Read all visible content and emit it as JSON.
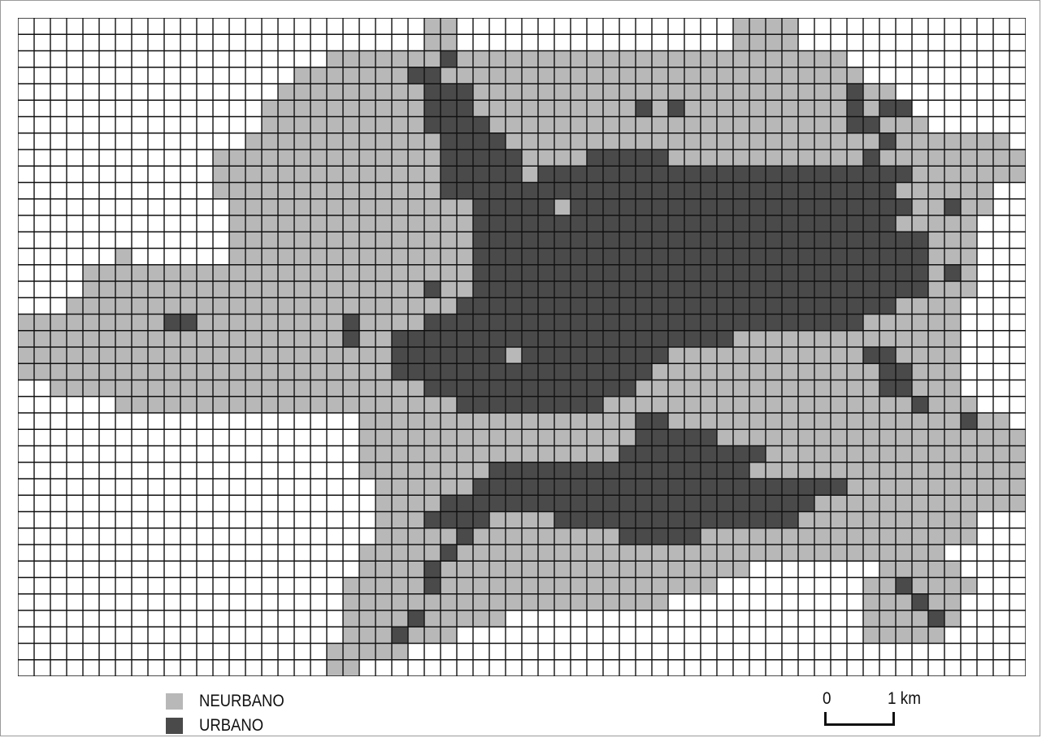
{
  "map": {
    "cols": 62,
    "rows": 40,
    "colors": {
      "neurbano": "#b8b8b8",
      "urbano": "#4a4a4a",
      "empty": "#ffffff",
      "gridline": "#111111"
    },
    "cells": [
      "                         NN                 NNNN               ",
      "                         NN                 NNNN               ",
      "                   NNNNNNNUNNNNNNNNNNNNNNNNNNNNNNNN            ",
      "                 NNNNNNNUUNNNNNNNNNNNNNNNNNNNNNNNNNN           ",
      "                NNNNNNNNNUUUNNNNNNNNNNNNNNNNNNNNNNNUNN         ",
      "               NNNNNNNNNNUUUNNNNNNNNNNUNUNNNNNNNNNNUNUU        ",
      "               NNNNNNNNNNUUUUNNNNNNNNNNNNNNNNNNNNNNUUNNN       ",
      "              NNNNNNNNNNNNUUUUNNNNNNNNNNNNNNNNNNNNNNNUNNNNNNN  ",
      "            NNNNNNNNNNNNNNUUUUUNNNNUUUUUNNNNNNNNNNNNUNNNNNNNNN ",
      "            NNNNNNNNNNNNNNUUUUUNUUUUUUUUUUUUUUUUUUUUUUUNNNNNNN ",
      "            NNNNNNNNNNNNNNUUUUUUUUUUUUUUUUUUUUUUUUUUUUNNNNNN   ",
      "             NNNNNNNNNNNNNNNUUUUUNUUUUUUUUUUUUUUUUUUUUUNNUNN   ",
      "             NNNNNNNNNNNNNNNUUUUUUUUUUUUUUUUUUUUUUUUUUNNNNN    ",
      "             NNNNNNNNNNNNNNNUUUUUUUUUUUUUUUUUUUUUUUUUUUUNNN    ",
      "      N      NNNNNNNNNNNNNNNUUUUUUUUUUUUUUUUUUUUUUUUUUUUNNN    ",
      "    NNNNNNNNNNNNNNNNNNNNNNNNUUUUUUUUUUUUUUUUUUUUUUUUUUUUNUN    ",
      "    NNNNNNNNNNNNNNNNNNNNNUNNUUUUUUUUUUUUUUUUUUUUUUUUUUUUNNN    ",
      "   NNNNNNNNNNNNNNNNNNNNNNNNUUUUUUUUUUUUUUUUUUUUUUUUUUUNNNN     ",
      "NNNNNNNNNUUNNNNNNNNNUNNNNUUUUUUUUUUUUUUUUUUUUUUUUUUUNNNNNN     ",
      "NNNNNNNNNNNNNNNNNNNNUNNUUUUUUUUUUUUUUUUUUUUUNNNNNNNNNNNNNN     ",
      "NNNNNNNNNNNNNNNNNNNNNNNUUUUUUUNUUUUUUUUUNNNNNNNNNNNNUUNNNN     ",
      "NNNNNNNNNNNNNNNNNNNNNNNUUUUUUUUUUUUUUUUNNNNNNNNNNNNNNUUNNN     ",
      "  NNNNNNNNNNNNNNNNNNNNNNNUUUUUUUUUUUUUNNNNNNNNNNNNNNNUUNNN     ",
      "      NNNNNNNNNNNNNNNNNNNNNUUUUUUUUUNNNNNNNNNNNNNNNNNNNUNNN    ",
      "                     NNNNNNNNNNNNNNNNNUUNNNNNNNNNNNNNNNNNNUNN   ",
      "                     NNNNNNNNNNNNNNNNNUUUUUNNNNNNNNNNNNNNNNNNN  ",
      "                     NNNNNNNNNNNNNNNNUUUUUUUUUNNNNNNNNNNNNNNNNN ",
      "                     NNNNNNNNUUUUUUUUUUUUUUUUNNNNNNNNNNNNNNNNNN ",
      "                      NNNNNNUUUUUUUUUUUUUUUUUUUUUUUNNNNNNNNNNN  ",
      "                      NNNNUUUUUUUUUUUUUUUUUUUUUUUNNNNNNNNNNNNN  ",
      "                      NNNUUUUNNNNUUUUUUUUUUUUUUUNNNNNNNNNNN     ",
      "                      NNNNNUNNNNNNNNNUUUUUNNNNNNNNNNNNNNNNN     ",
      "                     NNNNNUNNNNNNNNNNNNNNNNNNNNNNNNNNNNNN      ",
      "                     NNNNUNNNNNNNNNNNNNNNNNNN        NNNNN      ",
      "                    NNNNNUNNNNNNNNNNNNNNNNN         NNUNNNN     ",
      "                    NNNNNNNNNNNNNNNNNNNN            NNNUNN      ",
      "                    NNNNUNNNNN                      NNNNUN      ",
      "                    NNNUNNN                         NNNNN       ",
      "                   NNNNN                                        ",
      "                   NN                                           "
    ]
  },
  "legend": {
    "items": [
      {
        "key": "neurbano",
        "label": "NEURBANO",
        "color": "#b8b8b8"
      },
      {
        "key": "urbano",
        "label": "URBANO",
        "color": "#4a4a4a"
      }
    ]
  },
  "scale": {
    "start_label": "0",
    "end_label": "1 km"
  }
}
